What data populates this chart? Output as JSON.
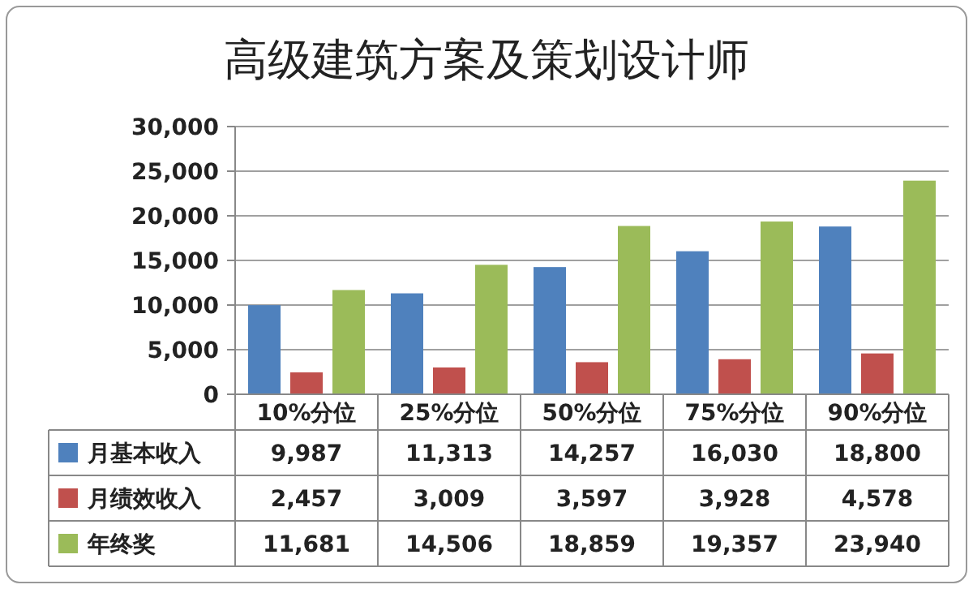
{
  "chart_data": {
    "type": "bar",
    "title": "高级建筑方案及策划设计师",
    "categories": [
      "10%分位",
      "25%分位",
      "50%分位",
      "75%分位",
      "90%分位"
    ],
    "series": [
      {
        "name": "月基本收入",
        "color": "#4f81bd",
        "values": [
          9987,
          11313,
          14257,
          16030,
          18800
        ],
        "value_labels": [
          "9,987",
          "11,313",
          "14,257",
          "16,030",
          "18,800"
        ]
      },
      {
        "name": "月绩效收入",
        "color": "#c0504d",
        "values": [
          2457,
          3009,
          3597,
          3928,
          4578
        ],
        "value_labels": [
          "2,457",
          "3,009",
          "3,597",
          "3,928",
          "4,578"
        ]
      },
      {
        "name": "年终奖",
        "color": "#9bbb59",
        "values": [
          11681,
          14506,
          18859,
          19357,
          23940
        ],
        "value_labels": [
          "11,681",
          "14,506",
          "18,859",
          "19,357",
          "23,940"
        ]
      }
    ],
    "ylim": [
      0,
      30000
    ],
    "yticks": [
      0,
      {
        "value": 5000,
        "label": "5,000"
      },
      {
        "value": 10000,
        "label": "10,000"
      },
      {
        "value": 15000,
        "label": "15,000"
      },
      {
        "value": 20000,
        "label": "20,000"
      },
      {
        "value": 25000,
        "label": "25,000"
      },
      {
        "value": 30000,
        "label": "30,000"
      }
    ],
    "grid": "y",
    "legend": "bottom"
  }
}
